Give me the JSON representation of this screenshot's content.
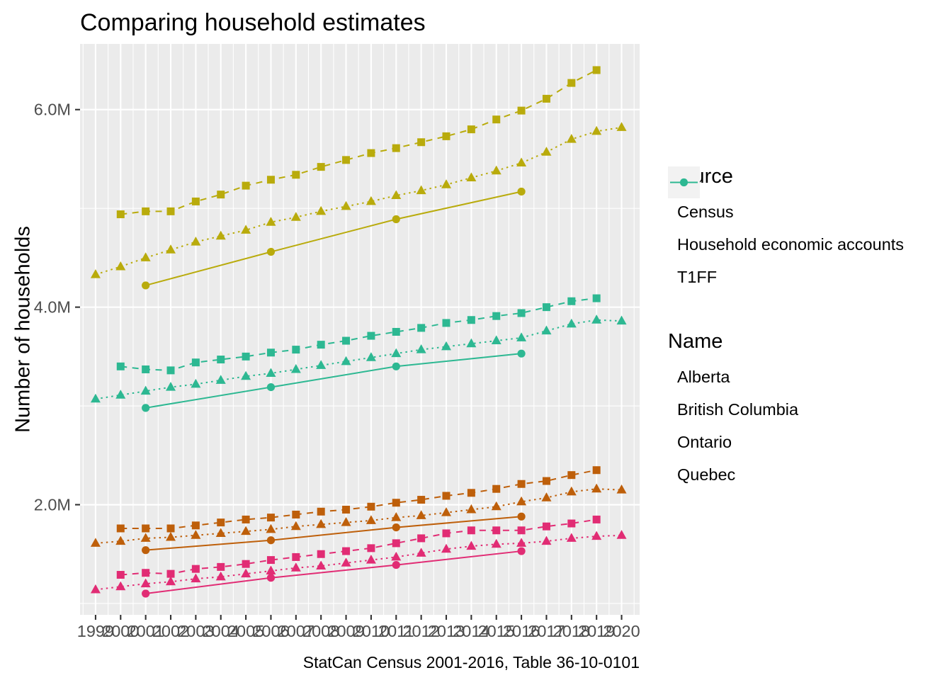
{
  "chart_data": {
    "type": "line",
    "title": "Comparing household estimates",
    "ylabel": "Number of households",
    "caption": "StatCan Census 2001-2016, Table 36-10-0101",
    "units": "millions of households",
    "xlim": [
      1998.38,
      2020.72
    ],
    "ylim": [
      0.885,
      6.665
    ],
    "x_tick_years": [
      "1999",
      "2000",
      "2001",
      "2002",
      "2003",
      "2004",
      "2005",
      "2006",
      "2007",
      "2008",
      "2009",
      "2010",
      "2011",
      "2012",
      "2013",
      "2014",
      "2015",
      "2016",
      "2017",
      "2018",
      "2019",
      "2020"
    ],
    "y_ticks": [
      {
        "label": "2.0M",
        "value": 2.0
      },
      {
        "label": "4.0M",
        "value": 4.0
      },
      {
        "label": "6.0M",
        "value": 6.0
      }
    ],
    "y_minor": [
      1.0,
      3.0,
      5.0
    ],
    "grid": "on",
    "panel_bg": "#EBEBEB",
    "grid_color": "#FFFFFF",
    "tick_label_color": "#4D4D4D",
    "legend_source": {
      "title": "Source",
      "items": [
        {
          "label": "Census",
          "source": "Census"
        },
        {
          "label": "Household economic accounts",
          "source": "HEA"
        },
        {
          "label": "T1FF",
          "source": "T1FF"
        }
      ]
    },
    "legend_name": {
      "title": "Name",
      "items": [
        {
          "label": "Alberta",
          "name": "Alberta"
        },
        {
          "label": "British Columbia",
          "name": "British Columbia"
        },
        {
          "label": "Ontario",
          "name": "Ontario"
        },
        {
          "label": "Quebec",
          "name": "Quebec"
        }
      ]
    },
    "colors": {
      "Alberta": "#E12C74",
      "British Columbia": "#BE5F0A",
      "Ontario": "#B9AB0C",
      "Quebec": "#2DB892"
    },
    "source_styles": {
      "Census": {
        "marker": "circle",
        "linetype": "solid"
      },
      "HEA": {
        "marker": "triangle",
        "linetype": "dotted"
      },
      "T1FF": {
        "marker": "square",
        "linetype": "dashed"
      }
    },
    "series": [
      {
        "name": "Alberta",
        "source": "Census",
        "years": [
          2001,
          2006,
          2011,
          2016
        ],
        "values": [
          1.1,
          1.26,
          1.39,
          1.53
        ]
      },
      {
        "name": "Alberta",
        "source": "HEA",
        "years": [
          1999,
          2000,
          2001,
          2002,
          2003,
          2004,
          2005,
          2006,
          2007,
          2008,
          2009,
          2010,
          2011,
          2012,
          2013,
          2014,
          2015,
          2016,
          2017,
          2018,
          2019,
          2020
        ],
        "values": [
          1.14,
          1.17,
          1.2,
          1.22,
          1.25,
          1.27,
          1.3,
          1.33,
          1.36,
          1.38,
          1.41,
          1.44,
          1.47,
          1.51,
          1.55,
          1.58,
          1.6,
          1.61,
          1.63,
          1.66,
          1.68,
          1.69
        ]
      },
      {
        "name": "Alberta",
        "source": "T1FF",
        "years": [
          2000,
          2001,
          2002,
          2003,
          2004,
          2005,
          2006,
          2007,
          2008,
          2009,
          2010,
          2011,
          2012,
          2013,
          2014,
          2015,
          2016,
          2017,
          2018,
          2019
        ],
        "values": [
          1.29,
          1.31,
          1.3,
          1.35,
          1.37,
          1.4,
          1.44,
          1.47,
          1.5,
          1.53,
          1.56,
          1.61,
          1.66,
          1.71,
          1.74,
          1.74,
          1.74,
          1.78,
          1.81,
          1.85
        ]
      },
      {
        "name": "British Columbia",
        "source": "Census",
        "years": [
          2001,
          2006,
          2011,
          2016
        ],
        "values": [
          1.54,
          1.64,
          1.77,
          1.88
        ]
      },
      {
        "name": "British Columbia",
        "source": "HEA",
        "years": [
          1999,
          2000,
          2001,
          2002,
          2003,
          2004,
          2005,
          2006,
          2007,
          2008,
          2009,
          2010,
          2011,
          2012,
          2013,
          2014,
          2015,
          2016,
          2017,
          2018,
          2019,
          2020
        ],
        "values": [
          1.61,
          1.63,
          1.66,
          1.67,
          1.69,
          1.71,
          1.73,
          1.75,
          1.78,
          1.8,
          1.82,
          1.84,
          1.87,
          1.89,
          1.92,
          1.95,
          1.98,
          2.03,
          2.07,
          2.13,
          2.16,
          2.15
        ]
      },
      {
        "name": "British Columbia",
        "source": "T1FF",
        "years": [
          2000,
          2001,
          2002,
          2003,
          2004,
          2005,
          2006,
          2007,
          2008,
          2009,
          2010,
          2011,
          2012,
          2013,
          2014,
          2015,
          2016,
          2017,
          2018,
          2019
        ],
        "values": [
          1.76,
          1.76,
          1.76,
          1.79,
          1.82,
          1.85,
          1.87,
          1.9,
          1.93,
          1.95,
          1.98,
          2.02,
          2.05,
          2.09,
          2.12,
          2.16,
          2.21,
          2.24,
          2.3,
          2.35
        ]
      },
      {
        "name": "Ontario",
        "source": "Census",
        "years": [
          2001,
          2006,
          2011,
          2016
        ],
        "values": [
          4.22,
          4.56,
          4.89,
          5.17
        ]
      },
      {
        "name": "Ontario",
        "source": "HEA",
        "years": [
          1999,
          2000,
          2001,
          2002,
          2003,
          2004,
          2005,
          2006,
          2007,
          2008,
          2009,
          2010,
          2011,
          2012,
          2013,
          2014,
          2015,
          2016,
          2017,
          2018,
          2019,
          2020
        ],
        "values": [
          4.33,
          4.41,
          4.5,
          4.58,
          4.66,
          4.72,
          4.78,
          4.86,
          4.91,
          4.97,
          5.02,
          5.07,
          5.13,
          5.18,
          5.24,
          5.31,
          5.38,
          5.46,
          5.57,
          5.7,
          5.78,
          5.82
        ]
      },
      {
        "name": "Ontario",
        "source": "T1FF",
        "years": [
          2000,
          2001,
          2002,
          2003,
          2004,
          2005,
          2006,
          2007,
          2008,
          2009,
          2010,
          2011,
          2012,
          2013,
          2014,
          2015,
          2016,
          2017,
          2018,
          2019
        ],
        "values": [
          4.94,
          4.97,
          4.97,
          5.07,
          5.14,
          5.23,
          5.29,
          5.34,
          5.42,
          5.49,
          5.56,
          5.61,
          5.67,
          5.73,
          5.8,
          5.9,
          5.99,
          6.11,
          6.27,
          6.4
        ]
      },
      {
        "name": "Quebec",
        "source": "Census",
        "years": [
          2001,
          2006,
          2011,
          2016
        ],
        "values": [
          2.98,
          3.19,
          3.4,
          3.53
        ]
      },
      {
        "name": "Quebec",
        "source": "HEA",
        "years": [
          1999,
          2000,
          2001,
          2002,
          2003,
          2004,
          2005,
          2006,
          2007,
          2008,
          2009,
          2010,
          2011,
          2012,
          2013,
          2014,
          2015,
          2016,
          2017,
          2018,
          2019,
          2020
        ],
        "values": [
          3.07,
          3.11,
          3.15,
          3.19,
          3.22,
          3.26,
          3.3,
          3.33,
          3.37,
          3.41,
          3.45,
          3.49,
          3.53,
          3.57,
          3.6,
          3.63,
          3.66,
          3.69,
          3.76,
          3.83,
          3.87,
          3.86
        ]
      },
      {
        "name": "Quebec",
        "source": "T1FF",
        "years": [
          2000,
          2001,
          2002,
          2003,
          2004,
          2005,
          2006,
          2007,
          2008,
          2009,
          2010,
          2011,
          2012,
          2013,
          2014,
          2015,
          2016,
          2017,
          2018,
          2019
        ],
        "values": [
          3.4,
          3.37,
          3.36,
          3.44,
          3.47,
          3.5,
          3.54,
          3.57,
          3.62,
          3.66,
          3.71,
          3.75,
          3.79,
          3.84,
          3.87,
          3.91,
          3.94,
          4.0,
          4.06,
          4.09
        ]
      }
    ]
  }
}
